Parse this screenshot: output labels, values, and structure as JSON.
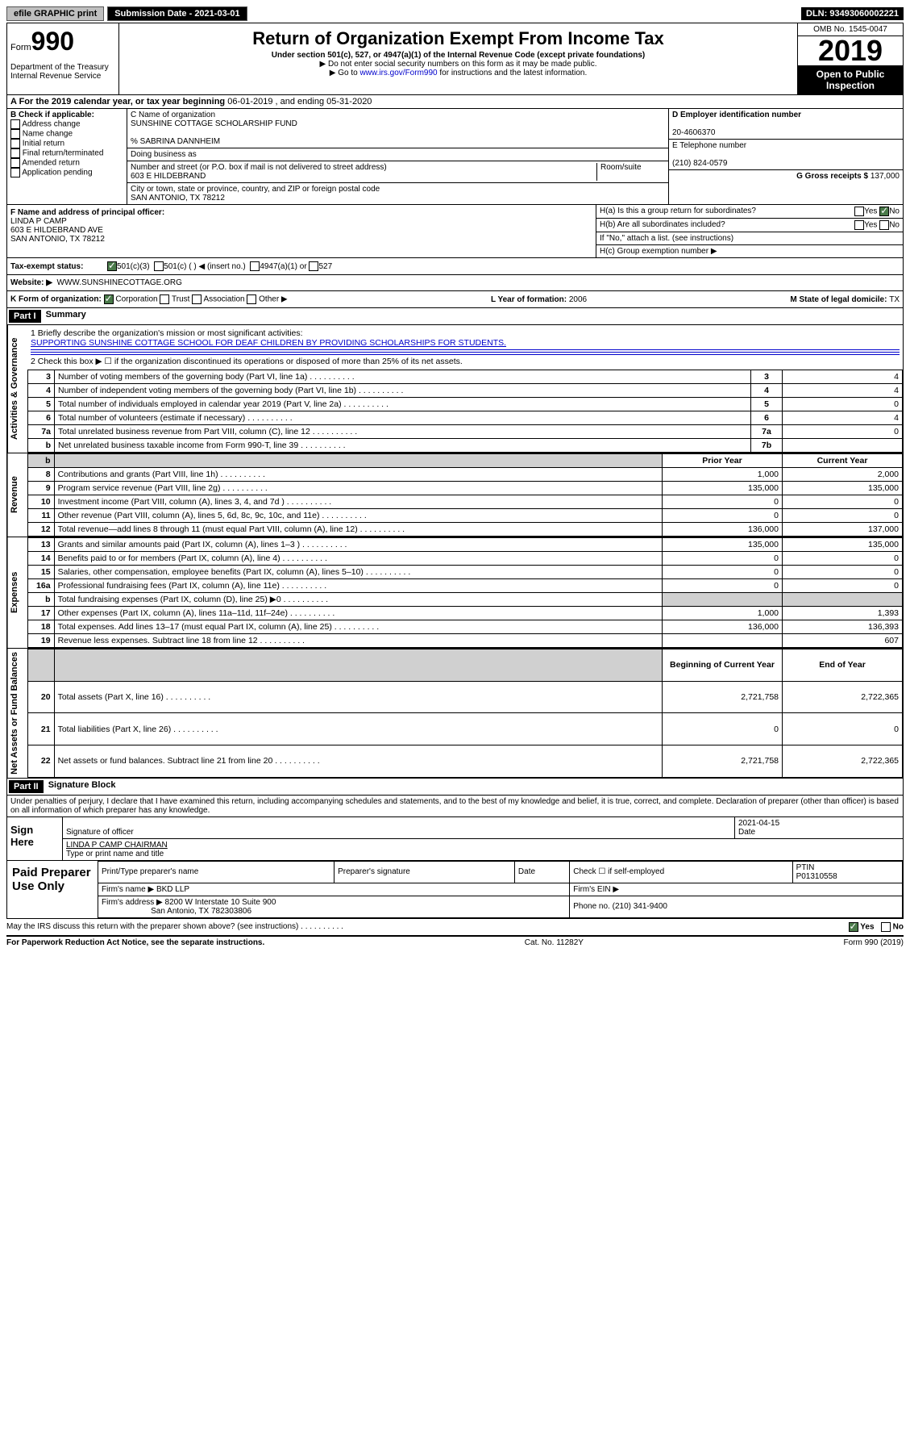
{
  "top": {
    "efile": "efile GRAPHIC print",
    "submission": "Submission Date - 2021-03-01",
    "dln": "DLN: 93493060002221"
  },
  "header": {
    "form_label": "Form",
    "form_no": "990",
    "dept": "Department of the Treasury Internal Revenue Service",
    "title": "Return of Organization Exempt From Income Tax",
    "sub1": "Under section 501(c), 527, or 4947(a)(1) of the Internal Revenue Code (except private foundations)",
    "sub2": "▶ Do not enter social security numbers on this form as it may be made public.",
    "sub3a": "▶ Go to ",
    "sub3link": "www.irs.gov/Form990",
    "sub3b": " for instructions and the latest information.",
    "omb": "OMB No. 1545-0047",
    "year": "2019",
    "open": "Open to Public Inspection"
  },
  "rowA": {
    "text_a": "A   For the 2019 calendar year, or tax year beginning ",
    "begin": "06-01-2019",
    "mid": " , and ending ",
    "end": "05-31-2020"
  },
  "boxB": {
    "label": "B Check if applicable:",
    "opts": [
      "Address change",
      "Name change",
      "Initial return",
      "Final return/terminated",
      "Amended return",
      "Application pending"
    ]
  },
  "boxC": {
    "name_lbl": "C Name of organization",
    "name": "SUNSHINE COTTAGE SCHOLARSHIP FUND",
    "care": "% SABRINA DANNHEIM",
    "dba_lbl": "Doing business as",
    "addr_lbl": "Number and street (or P.O. box if mail is not delivered to street address)",
    "room_lbl": "Room/suite",
    "addr": "603 E HILDEBRAND",
    "city_lbl": "City or town, state or province, country, and ZIP or foreign postal code",
    "city": "SAN ANTONIO, TX  78212"
  },
  "boxD": {
    "lbl": "D Employer identification number",
    "val": "20-4606370",
    "tel_lbl": "E Telephone number",
    "tel": "(210) 824-0579",
    "g_lbl": "G Gross receipts $ ",
    "g_val": "137,000"
  },
  "boxF": {
    "lbl": "F  Name and address of principal officer:",
    "name": "LINDA P CAMP",
    "addr1": "603 E HILDEBRAND AVE",
    "addr2": "SAN ANTONIO, TX  78212"
  },
  "boxH": {
    "ha": "H(a)  Is this a group return for subordinates?",
    "hb": "H(b)  Are all subordinates included?",
    "hb2": "If \"No,\" attach a list. (see instructions)",
    "hc": "H(c)  Group exemption number ▶",
    "yes": "Yes",
    "no": "No"
  },
  "rowI": {
    "lbl": "Tax-exempt status:",
    "o1": "501(c)(3)",
    "o2": "501(c) (   ) ◀ (insert no.)",
    "o3": "4947(a)(1) or",
    "o4": "527"
  },
  "rowJ": {
    "lbl": "Website: ▶",
    "val": "WWW.SUNSHINECOTTAGE.ORG"
  },
  "rowK": {
    "lbl": "K Form of organization:",
    "o1": "Corporation",
    "o2": "Trust",
    "o3": "Association",
    "o4": "Other ▶",
    "l_lbl": "L Year of formation: ",
    "l_val": "2006",
    "m_lbl": "M State of legal domicile: ",
    "m_val": "TX"
  },
  "part1": {
    "hdr": "Part I",
    "title": "Summary",
    "q1": "1  Briefly describe the organization's mission or most significant activities:",
    "mission": "SUPPORTING SUNSHINE COTTAGE SCHOOL FOR DEAF CHILDREN BY PROVIDING SCHOLARSHIPS FOR STUDENTS.",
    "q2": "2   Check this box ▶ ☐  if the organization discontinued its operations or disposed of more than 25% of its net assets."
  },
  "vtabs": {
    "gov": "Activities & Governance",
    "rev": "Revenue",
    "exp": "Expenses",
    "net": "Net Assets or Fund Balances"
  },
  "lines_gov": [
    {
      "n": "3",
      "d": "Number of voting members of the governing body (Part VI, line 1a)",
      "c": "3",
      "v": "4"
    },
    {
      "n": "4",
      "d": "Number of independent voting members of the governing body (Part VI, line 1b)",
      "c": "4",
      "v": "4"
    },
    {
      "n": "5",
      "d": "Total number of individuals employed in calendar year 2019 (Part V, line 2a)",
      "c": "5",
      "v": "0"
    },
    {
      "n": "6",
      "d": "Total number of volunteers (estimate if necessary)",
      "c": "6",
      "v": "4"
    },
    {
      "n": "7a",
      "d": "Total unrelated business revenue from Part VIII, column (C), line 12",
      "c": "7a",
      "v": "0"
    },
    {
      "n": "b",
      "d": "Net unrelated business taxable income from Form 990-T, line 39",
      "c": "7b",
      "v": ""
    }
  ],
  "rev_hdr": {
    "py": "Prior Year",
    "cy": "Current Year"
  },
  "lines_rev": [
    {
      "n": "8",
      "d": "Contributions and grants (Part VIII, line 1h)",
      "py": "1,000",
      "cy": "2,000"
    },
    {
      "n": "9",
      "d": "Program service revenue (Part VIII, line 2g)",
      "py": "135,000",
      "cy": "135,000"
    },
    {
      "n": "10",
      "d": "Investment income (Part VIII, column (A), lines 3, 4, and 7d )",
      "py": "0",
      "cy": "0"
    },
    {
      "n": "11",
      "d": "Other revenue (Part VIII, column (A), lines 5, 6d, 8c, 9c, 10c, and 11e)",
      "py": "0",
      "cy": "0"
    },
    {
      "n": "12",
      "d": "Total revenue—add lines 8 through 11 (must equal Part VIII, column (A), line 12)",
      "py": "136,000",
      "cy": "137,000"
    }
  ],
  "lines_exp": [
    {
      "n": "13",
      "d": "Grants and similar amounts paid (Part IX, column (A), lines 1–3 )",
      "py": "135,000",
      "cy": "135,000"
    },
    {
      "n": "14",
      "d": "Benefits paid to or for members (Part IX, column (A), line 4)",
      "py": "0",
      "cy": "0"
    },
    {
      "n": "15",
      "d": "Salaries, other compensation, employee benefits (Part IX, column (A), lines 5–10)",
      "py": "0",
      "cy": "0"
    },
    {
      "n": "16a",
      "d": "Professional fundraising fees (Part IX, column (A), line 11e)",
      "py": "0",
      "cy": "0"
    },
    {
      "n": "b",
      "d": "Total fundraising expenses (Part IX, column (D), line 25) ▶0",
      "py": "",
      "cy": "",
      "shade": true
    },
    {
      "n": "17",
      "d": "Other expenses (Part IX, column (A), lines 11a–11d, 11f–24e)",
      "py": "1,000",
      "cy": "1,393"
    },
    {
      "n": "18",
      "d": "Total expenses. Add lines 13–17 (must equal Part IX, column (A), line 25)",
      "py": "136,000",
      "cy": "136,393"
    },
    {
      "n": "19",
      "d": "Revenue less expenses. Subtract line 18 from line 12",
      "py": "",
      "cy": "607"
    }
  ],
  "net_hdr": {
    "b": "Beginning of Current Year",
    "e": "End of Year"
  },
  "lines_net": [
    {
      "n": "20",
      "d": "Total assets (Part X, line 16)",
      "py": "2,721,758",
      "cy": "2,722,365"
    },
    {
      "n": "21",
      "d": "Total liabilities (Part X, line 26)",
      "py": "0",
      "cy": "0"
    },
    {
      "n": "22",
      "d": "Net assets or fund balances. Subtract line 21 from line 20",
      "py": "2,721,758",
      "cy": "2,722,365"
    }
  ],
  "part2": {
    "hdr": "Part II",
    "title": "Signature Block",
    "decl": "Under penalties of perjury, I declare that I have examined this return, including accompanying schedules and statements, and to the best of my knowledge and belief, it is true, correct, and complete. Declaration of preparer (other than officer) is based on all information of which preparer has any knowledge."
  },
  "sign": {
    "here": "Sign Here",
    "sig_lbl": "Signature of officer",
    "date": "2021-04-15",
    "date_lbl": "Date",
    "name": "LINDA P CAMP CHAIRMAN",
    "name_lbl": "Type or print name and title"
  },
  "prep": {
    "title": "Paid Preparer Use Only",
    "h1": "Print/Type preparer's name",
    "h2": "Preparer's signature",
    "h3": "Date",
    "h4a": "Check ☐ if self-employed",
    "h5": "PTIN",
    "ptin": "P01310558",
    "firm_lbl": "Firm's name    ▶ ",
    "firm": "BKD LLP",
    "ein_lbl": "Firm's EIN ▶",
    "addr_lbl": "Firm's address ▶ ",
    "addr1": "8200 W Interstate 10 Suite 900",
    "addr2": "San Antonio, TX  782303806",
    "phone_lbl": "Phone no. ",
    "phone": "(210) 341-9400"
  },
  "footer": {
    "q": "May the IRS discuss this return with the preparer shown above? (see instructions)",
    "yes": "Yes",
    "no": "No",
    "pra": "For Paperwork Reduction Act Notice, see the separate instructions.",
    "cat": "Cat. No. 11282Y",
    "form": "Form 990 (2019)"
  }
}
